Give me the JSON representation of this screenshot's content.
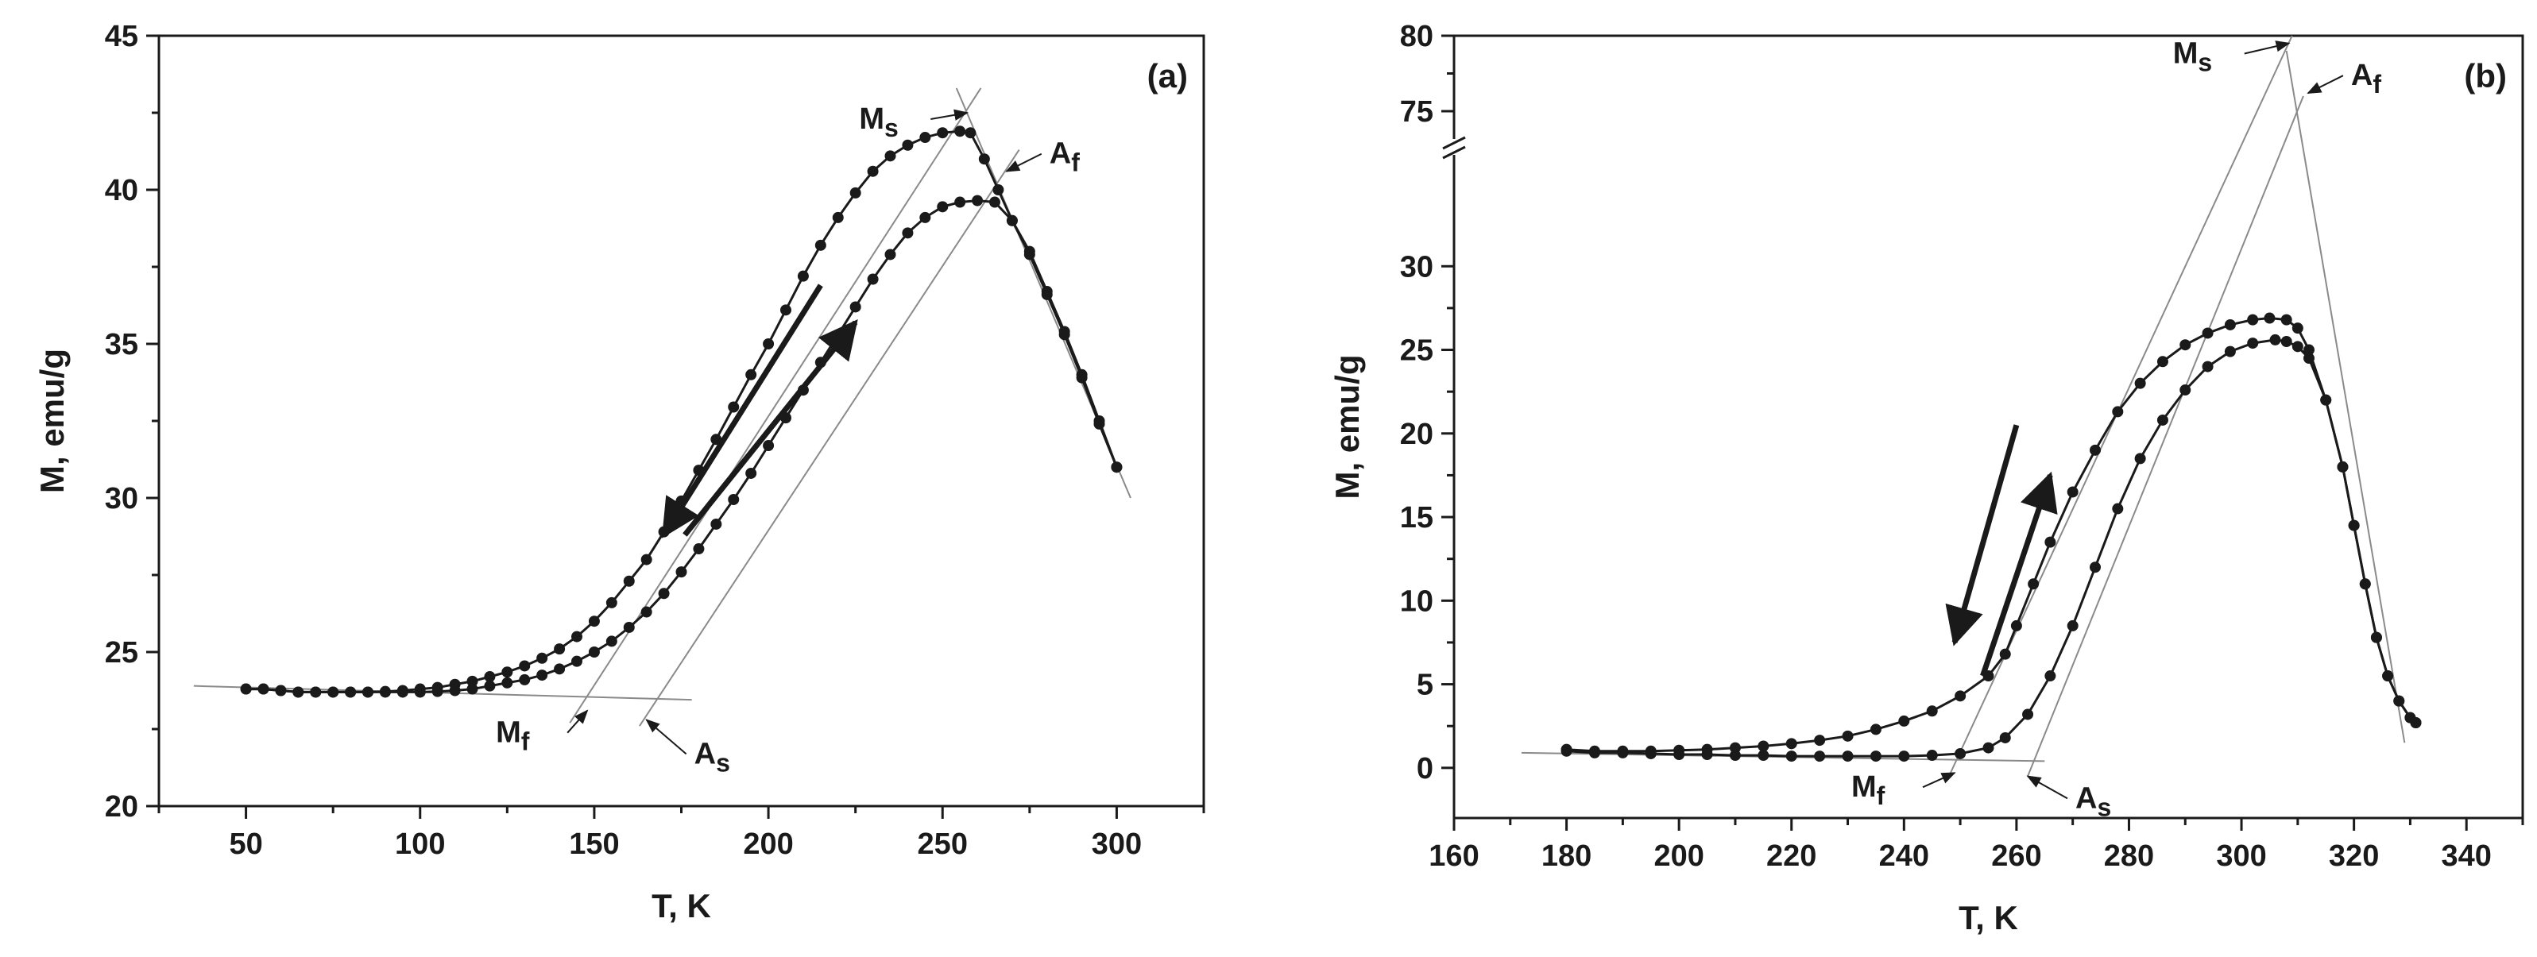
{
  "chart_data": [
    {
      "panel": "(a)",
      "type": "scatter",
      "xlabel": "T, K",
      "ylabel": "M, emu/g",
      "xlim": [
        25,
        325
      ],
      "ylim": [
        20,
        45
      ],
      "xticks": [
        50,
        100,
        150,
        200,
        250,
        300
      ],
      "yticks": [
        20,
        25,
        30,
        35,
        40,
        45
      ],
      "series": [
        {
          "name": "cooling",
          "x": [
            50,
            55,
            60,
            65,
            70,
            75,
            80,
            85,
            90,
            95,
            100,
            105,
            110,
            115,
            120,
            125,
            130,
            135,
            140,
            145,
            150,
            155,
            160,
            165,
            170,
            175,
            180,
            185,
            190,
            195,
            200,
            205,
            210,
            215,
            220,
            225,
            230,
            235,
            240,
            245,
            250,
            255,
            258,
            262,
            266,
            270,
            275,
            280,
            285,
            290,
            295,
            300
          ],
          "y": [
            23.8,
            23.8,
            23.75,
            23.7,
            23.7,
            23.7,
            23.7,
            23.7,
            23.72,
            23.75,
            23.8,
            23.85,
            23.95,
            24.05,
            24.2,
            24.35,
            24.55,
            24.8,
            25.1,
            25.5,
            26.0,
            26.6,
            27.3,
            28.0,
            28.9,
            29.9,
            30.9,
            31.9,
            32.95,
            34.0,
            35.0,
            36.1,
            37.2,
            38.2,
            39.1,
            39.9,
            40.6,
            41.1,
            41.45,
            41.7,
            41.85,
            41.9,
            41.85,
            41.0,
            40.0,
            39.0,
            37.9,
            36.6,
            35.3,
            33.9,
            32.4,
            31.0
          ]
        },
        {
          "name": "heating",
          "x": [
            50,
            55,
            60,
            65,
            70,
            75,
            80,
            85,
            90,
            95,
            100,
            105,
            110,
            115,
            120,
            125,
            130,
            135,
            140,
            145,
            150,
            155,
            160,
            165,
            170,
            175,
            180,
            185,
            190,
            195,
            200,
            205,
            210,
            215,
            220,
            225,
            230,
            235,
            240,
            245,
            250,
            255,
            260,
            265,
            270,
            275,
            280,
            285,
            290,
            295,
            300
          ],
          "y": [
            23.8,
            23.8,
            23.75,
            23.7,
            23.7,
            23.7,
            23.7,
            23.7,
            23.7,
            23.7,
            23.7,
            23.72,
            23.75,
            23.8,
            23.9,
            24.0,
            24.1,
            24.25,
            24.45,
            24.7,
            25.0,
            25.35,
            25.8,
            26.3,
            26.9,
            27.6,
            28.35,
            29.15,
            29.95,
            30.8,
            31.7,
            32.6,
            33.5,
            34.4,
            35.3,
            36.2,
            37.1,
            37.9,
            38.6,
            39.1,
            39.45,
            39.6,
            39.65,
            39.6,
            39.0,
            38.0,
            36.7,
            35.4,
            34.0,
            32.5,
            31.0
          ]
        }
      ],
      "guide_lines": [
        {
          "x1": 35,
          "y1": 23.9,
          "x2": 178,
          "y2": 23.45
        },
        {
          "x1": 143,
          "y1": 22.7,
          "x2": 261,
          "y2": 43.3
        },
        {
          "x1": 163,
          "y1": 22.6,
          "x2": 272,
          "y2": 41.3
        },
        {
          "x1": 254,
          "y1": 43.3,
          "x2": 304,
          "y2": 30.0
        }
      ],
      "arrows": [
        {
          "direction": "cooling",
          "x1": 215,
          "y1": 36.9,
          "x2": 170,
          "y2": 28.8
        },
        {
          "direction": "heating",
          "x1": 176,
          "y1": 28.8,
          "x2": 225,
          "y2": 35.7
        }
      ],
      "annotations": [
        {
          "main": "M",
          "sub": "s",
          "x": 258,
          "y": 42.5
        },
        {
          "main": "A",
          "sub": "f",
          "x": 267,
          "y": 40.6
        },
        {
          "main": "M",
          "sub": "f",
          "x": 148,
          "y": 23.1
        },
        {
          "main": "A",
          "sub": "s",
          "x": 165,
          "y": 22.8
        }
      ]
    },
    {
      "panel": "(b)",
      "type": "scatter",
      "xlabel": "T, K",
      "ylabel": "M, emu/g",
      "xlim": [
        160,
        350
      ],
      "ylim": [
        -3,
        80
      ],
      "axis_break": {
        "lower_max": 35,
        "upper_min": 75,
        "upper_max": 80
      },
      "xticks": [
        160,
        180,
        200,
        220,
        240,
        260,
        280,
        300,
        320,
        340
      ],
      "yticks": [
        0,
        5,
        10,
        15,
        20,
        25,
        30,
        75,
        80
      ],
      "series": [
        {
          "name": "cooling",
          "x": [
            180,
            185,
            190,
            195,
            200,
            205,
            210,
            215,
            220,
            225,
            230,
            235,
            240,
            245,
            250,
            255,
            258,
            260,
            263,
            266,
            270,
            274,
            278,
            282,
            286,
            290,
            294,
            298,
            302,
            305,
            308,
            310,
            312,
            315,
            318,
            320,
            322,
            324,
            326,
            328,
            330,
            331
          ],
          "y": [
            1.1,
            1.0,
            1.0,
            1.0,
            1.05,
            1.1,
            1.2,
            1.3,
            1.45,
            1.65,
            1.9,
            2.3,
            2.8,
            3.4,
            4.3,
            5.5,
            6.8,
            8.5,
            11.0,
            13.5,
            16.5,
            19.0,
            21.3,
            23.0,
            24.3,
            25.3,
            26.0,
            26.5,
            26.8,
            26.9,
            26.8,
            26.3,
            25.0,
            22.0,
            18.0,
            14.5,
            11.0,
            7.8,
            5.5,
            4.0,
            3.0,
            2.7
          ]
        },
        {
          "name": "heating",
          "x": [
            180,
            185,
            190,
            195,
            200,
            205,
            210,
            215,
            220,
            225,
            230,
            235,
            240,
            245,
            250,
            255,
            258,
            262,
            266,
            270,
            274,
            278,
            282,
            286,
            290,
            294,
            298,
            302,
            306,
            308,
            310,
            312,
            315,
            318,
            320,
            322,
            324,
            326,
            328,
            330,
            331
          ],
          "y": [
            1.0,
            0.9,
            0.9,
            0.85,
            0.8,
            0.8,
            0.75,
            0.75,
            0.7,
            0.7,
            0.7,
            0.7,
            0.7,
            0.75,
            0.85,
            1.2,
            1.8,
            3.2,
            5.5,
            8.5,
            12.0,
            15.5,
            18.5,
            20.8,
            22.6,
            24.0,
            24.9,
            25.4,
            25.6,
            25.5,
            25.2,
            24.5,
            22.0,
            18.0,
            14.5,
            11.0,
            7.8,
            5.5,
            4.0,
            3.0,
            2.7
          ]
        }
      ],
      "guide_lines": [
        {
          "x1": 172,
          "y1": 0.9,
          "x2": 265,
          "y2": 0.4
        },
        {
          "x1": 248,
          "y1": -0.5,
          "x2": 309,
          "y2": 80
        },
        {
          "x1": 262,
          "y1": -0.5,
          "x2": 311,
          "y2": 76
        },
        {
          "x1": 308,
          "y1": 79,
          "x2": 329,
          "y2": 1.5
        }
      ],
      "arrows": [
        {
          "direction": "cooling",
          "x1": 260,
          "y1": 20.5,
          "x2": 249,
          "y2": 7.5
        },
        {
          "direction": "heating",
          "x1": 254,
          "y1": 5.5,
          "x2": 266,
          "y2": 17.5
        }
      ],
      "annotations": [
        {
          "main": "M",
          "sub": "s",
          "x": 309,
          "y": 79.5
        },
        {
          "main": "A",
          "sub": "f",
          "x": 311,
          "y": 76.2
        },
        {
          "main": "M",
          "sub": "f",
          "x": 249,
          "y": -0.3
        },
        {
          "main": "A",
          "sub": "s",
          "x": 262,
          "y": -0.5
        }
      ]
    }
  ]
}
